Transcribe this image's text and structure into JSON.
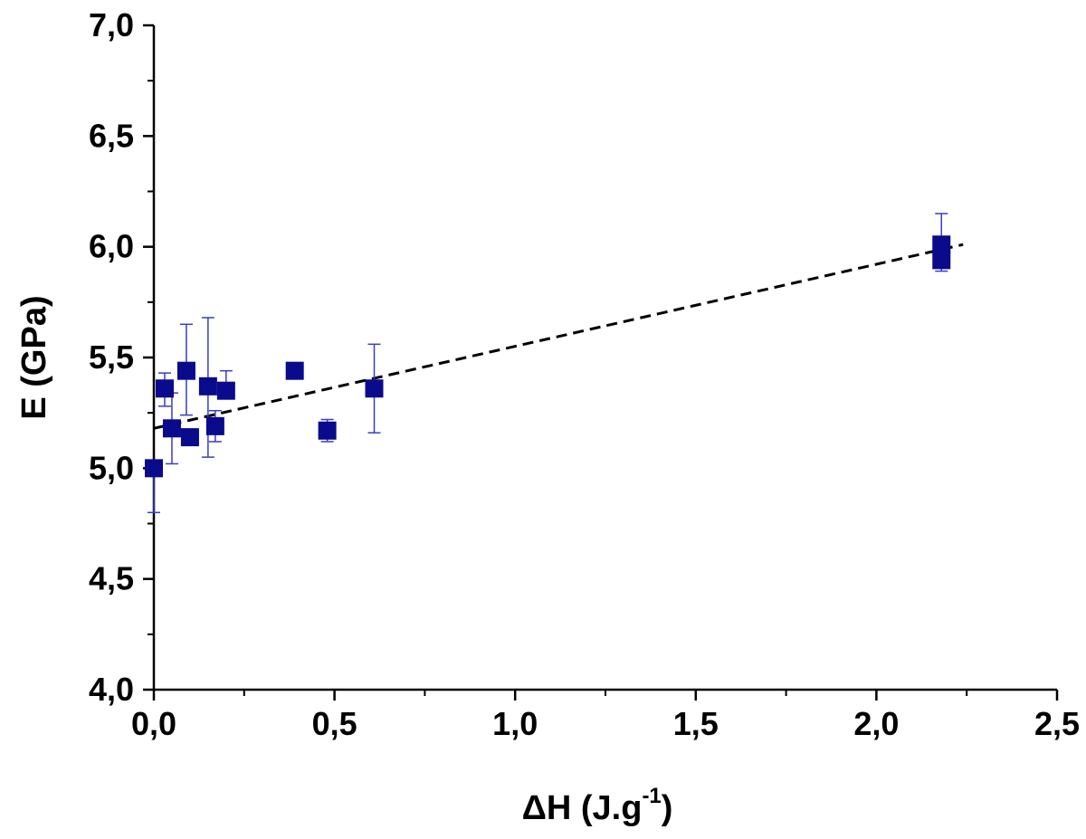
{
  "chart_data": {
    "type": "scatter",
    "title": "",
    "xlabel_main": "ΔH (J.g",
    "xlabel_sup": "-1",
    "xlabel_close": ")",
    "ylabel": "E (GPa)",
    "xlim": [
      0.0,
      2.5
    ],
    "ylim": [
      4.0,
      7.0
    ],
    "x_ticks": [
      0.0,
      0.5,
      1.0,
      1.5,
      2.0,
      2.5
    ],
    "x_tick_labels": [
      "0,0",
      "0,5",
      "1,0",
      "1,5",
      "2,0",
      "2,5"
    ],
    "y_ticks": [
      4.0,
      4.5,
      5.0,
      5.5,
      6.0,
      6.5,
      7.0
    ],
    "y_tick_labels": [
      "4,0",
      "4,5",
      "5,0",
      "5,5",
      "6,0",
      "6,5",
      "7,0"
    ],
    "grid": false,
    "marker_color": "#0a0a8c",
    "errorbar_color": "#3b3bc8",
    "fit_color": "#000000",
    "points": [
      {
        "x": 0.0,
        "y": 5.0,
        "err_lo": 0.2,
        "err_hi": 0.0
      },
      {
        "x": 0.03,
        "y": 5.36,
        "err_lo": 0.08,
        "err_hi": 0.07
      },
      {
        "x": 0.05,
        "y": 5.18,
        "err_lo": 0.16,
        "err_hi": 0.16
      },
      {
        "x": 0.09,
        "y": 5.44,
        "err_lo": 0.2,
        "err_hi": 0.21
      },
      {
        "x": 0.1,
        "y": 5.14,
        "err_lo": 0.0,
        "err_hi": 0.0
      },
      {
        "x": 0.15,
        "y": 5.37,
        "err_lo": 0.32,
        "err_hi": 0.31
      },
      {
        "x": 0.17,
        "y": 5.19,
        "err_lo": 0.07,
        "err_hi": 0.07
      },
      {
        "x": 0.2,
        "y": 5.35,
        "err_lo": 0.0,
        "err_hi": 0.09
      },
      {
        "x": 0.39,
        "y": 5.44,
        "err_lo": 0.0,
        "err_hi": 0.0
      },
      {
        "x": 0.48,
        "y": 5.17,
        "err_lo": 0.05,
        "err_hi": 0.05
      },
      {
        "x": 0.61,
        "y": 5.36,
        "err_lo": 0.2,
        "err_hi": 0.2
      },
      {
        "x": 2.18,
        "y": 6.01,
        "err_lo": 0.0,
        "err_hi": 0.14
      },
      {
        "x": 2.18,
        "y": 5.94,
        "err_lo": 0.05,
        "err_hi": 0.0
      }
    ],
    "fit_line": {
      "x": [
        0.0,
        2.24
      ],
      "y": [
        5.18,
        6.01
      ]
    }
  }
}
